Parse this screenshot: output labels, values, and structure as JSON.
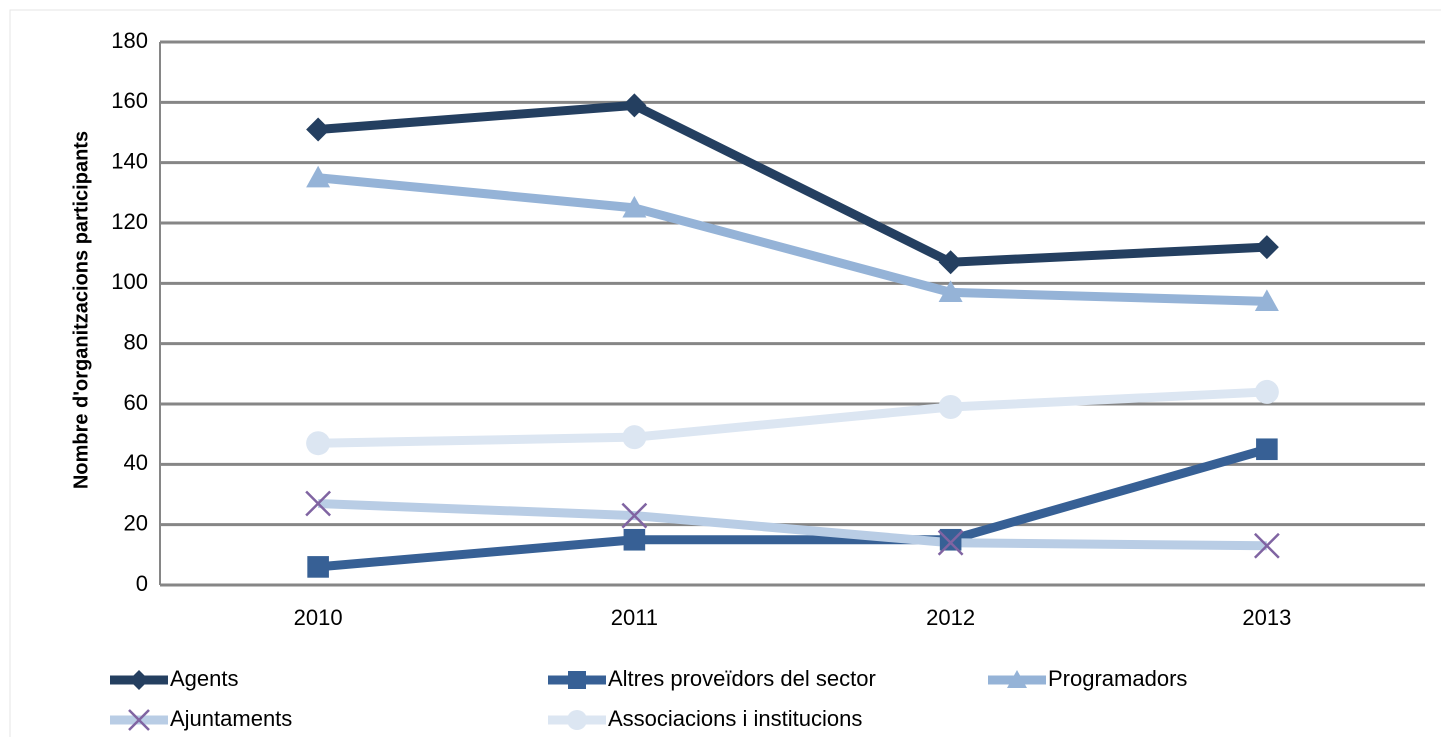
{
  "chart_data": {
    "type": "line",
    "y_label": "Nombre d'organitzacions participants",
    "categories": [
      "2010",
      "2011",
      "2012",
      "2013"
    ],
    "series": [
      {
        "name": "Agents",
        "color": "#243f60",
        "marker": "diamond",
        "values": [
          151,
          159,
          107,
          112
        ]
      },
      {
        "name": "Altres proveïdors del sector",
        "color": "#376095",
        "marker": "square",
        "values": [
          6,
          15,
          15,
          45
        ]
      },
      {
        "name": "Programadors",
        "color": "#95b3d7",
        "marker": "triangle",
        "values": [
          135,
          125,
          97,
          94
        ]
      },
      {
        "name": "Ajuntaments",
        "color": "#b9cde5",
        "marker": "x",
        "marker_color": "#8064a2",
        "values": [
          27,
          23,
          14,
          13
        ]
      },
      {
        "name": "Associacions i institucions",
        "color": "#dce6f2",
        "marker": "circle",
        "values": [
          47,
          49,
          59,
          64
        ]
      }
    ],
    "ylim": [
      0,
      180
    ],
    "yticks": [
      0,
      20,
      40,
      60,
      80,
      100,
      120,
      140,
      160,
      180
    ],
    "grid": true,
    "legend": "bottom"
  }
}
